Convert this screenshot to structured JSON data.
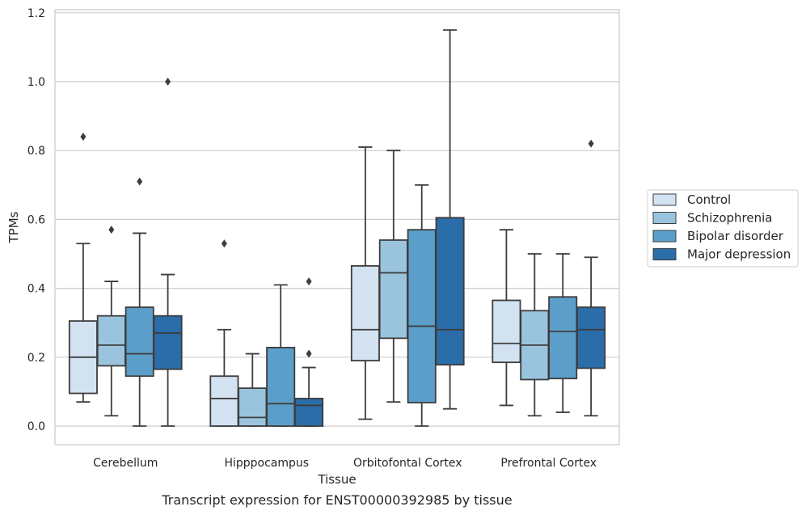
{
  "chart_data": {
    "type": "box",
    "title": "",
    "caption": "Transcript expression for ENST00000392985 by tissue",
    "xlabel": "Tissue",
    "ylabel": "TPMs",
    "ylim": [
      -0.055,
      1.21
    ],
    "yticks": [
      0.0,
      0.2,
      0.4,
      0.6,
      0.8,
      1.0,
      1.2
    ],
    "ytick_labels": [
      "0.0",
      "0.2",
      "0.4",
      "0.6",
      "0.8",
      "1.0",
      "1.2"
    ],
    "grid": "horizontal",
    "legend_position": "right",
    "categories": [
      "Cerebellum",
      "Hipppocampus",
      "Orbitofontal Cortex",
      "Prefrontal Cortex"
    ],
    "series": [
      {
        "name": "Control",
        "color": "#d3e2f1",
        "boxes": [
          {
            "whislo": 0.07,
            "q1": 0.095,
            "med": 0.2,
            "q3": 0.305,
            "whishi": 0.53,
            "fliers": [
              0.84
            ]
          },
          {
            "whislo": 0.0,
            "q1": 0.0,
            "med": 0.08,
            "q3": 0.145,
            "whishi": 0.28,
            "fliers": [
              0.53
            ]
          },
          {
            "whislo": 0.02,
            "q1": 0.19,
            "med": 0.28,
            "q3": 0.465,
            "whishi": 0.81,
            "fliers": []
          },
          {
            "whislo": 0.06,
            "q1": 0.185,
            "med": 0.24,
            "q3": 0.365,
            "whishi": 0.57,
            "fliers": []
          }
        ]
      },
      {
        "name": "Schizophrenia",
        "color": "#9ac4dd",
        "boxes": [
          {
            "whislo": 0.03,
            "q1": 0.175,
            "med": 0.235,
            "q3": 0.32,
            "whishi": 0.42,
            "fliers": [
              0.57
            ]
          },
          {
            "whislo": 0.0,
            "q1": 0.0,
            "med": 0.025,
            "q3": 0.11,
            "whishi": 0.21,
            "fliers": []
          },
          {
            "whislo": 0.07,
            "q1": 0.255,
            "med": 0.445,
            "q3": 0.54,
            "whishi": 0.8,
            "fliers": []
          },
          {
            "whislo": 0.03,
            "q1": 0.135,
            "med": 0.235,
            "q3": 0.335,
            "whishi": 0.5,
            "fliers": []
          }
        ]
      },
      {
        "name": "Bipolar disorder",
        "color": "#5b9ec9",
        "boxes": [
          {
            "whislo": 0.0,
            "q1": 0.145,
            "med": 0.21,
            "q3": 0.345,
            "whishi": 0.56,
            "fliers": [
              0.71
            ]
          },
          {
            "whislo": 0.0,
            "q1": 0.0,
            "med": 0.065,
            "q3": 0.228,
            "whishi": 0.41,
            "fliers": []
          },
          {
            "whislo": 0.0,
            "q1": 0.068,
            "med": 0.29,
            "q3": 0.57,
            "whishi": 0.7,
            "fliers": []
          },
          {
            "whislo": 0.04,
            "q1": 0.138,
            "med": 0.275,
            "q3": 0.375,
            "whishi": 0.5,
            "fliers": []
          }
        ]
      },
      {
        "name": "Major depression",
        "color": "#2b6da8",
        "boxes": [
          {
            "whislo": 0.0,
            "q1": 0.165,
            "med": 0.27,
            "q3": 0.32,
            "whishi": 0.44,
            "fliers": [
              1.0
            ]
          },
          {
            "whislo": 0.0,
            "q1": 0.0,
            "med": 0.06,
            "q3": 0.08,
            "whishi": 0.17,
            "fliers": [
              0.21,
              0.42
            ]
          },
          {
            "whislo": 0.05,
            "q1": 0.178,
            "med": 0.28,
            "q3": 0.605,
            "whishi": 1.15,
            "fliers": []
          },
          {
            "whislo": 0.03,
            "q1": 0.168,
            "med": 0.28,
            "q3": 0.345,
            "whishi": 0.49,
            "fliers": [
              0.82
            ]
          }
        ]
      }
    ]
  }
}
